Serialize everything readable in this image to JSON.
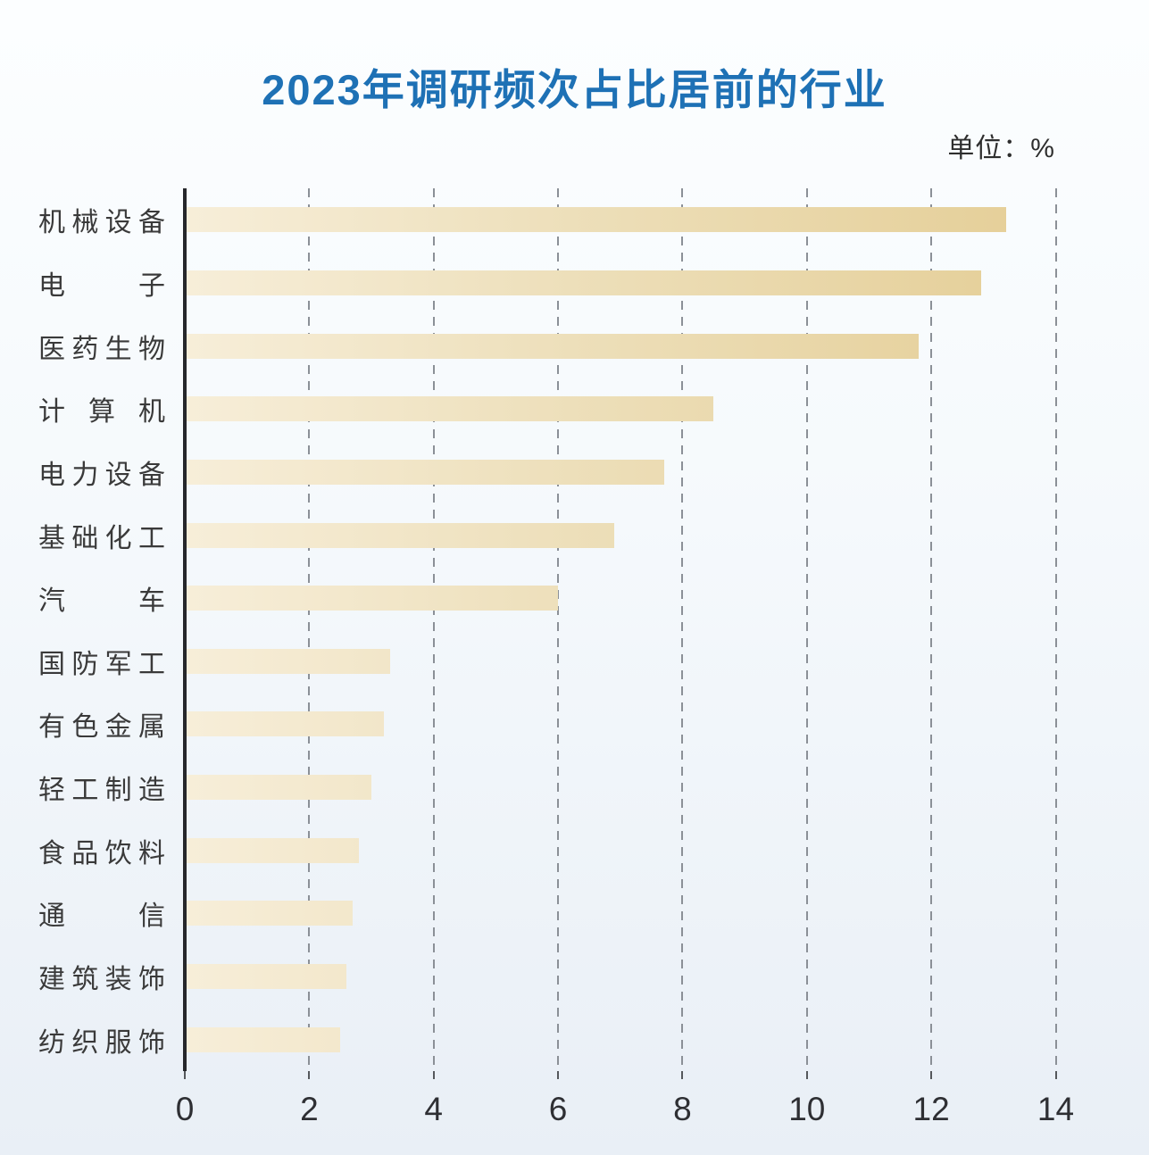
{
  "title": "2023年调研频次占比居前的行业",
  "unit_label": "单位：%",
  "colors": {
    "title_blue": "#1e71b5",
    "bar_gradient_start": "#f7eed9",
    "bar_gradient_end": "#e3cb90",
    "axis_line": "#26272b",
    "gridline": "#8b9097",
    "label_text": "#3a3a3a",
    "background_top": "#fcfeff",
    "background_bottom": "#e9eff6"
  },
  "chart_data": {
    "type": "bar",
    "orientation": "horizontal",
    "title": "2023年调研频次占比居前的行业",
    "unit": "%",
    "categories": [
      "机械设备",
      "电子",
      "医药生物",
      "计算机",
      "电力设备",
      "基础化工",
      "汽车",
      "国防军工",
      "有色金属",
      "轻工制造",
      "食品饮料",
      "通信",
      "建筑装饰",
      "纺织服饰"
    ],
    "values": [
      13.2,
      12.8,
      11.8,
      8.5,
      7.7,
      6.9,
      6.0,
      3.3,
      3.2,
      3.0,
      2.8,
      2.7,
      2.6,
      2.5
    ],
    "xlabel": "",
    "ylabel": "",
    "xlim": [
      0,
      15.5
    ],
    "xticks": [
      0,
      2,
      4,
      6,
      8,
      10,
      12,
      14
    ],
    "grid": "dashed-vertical",
    "legend": "none"
  }
}
